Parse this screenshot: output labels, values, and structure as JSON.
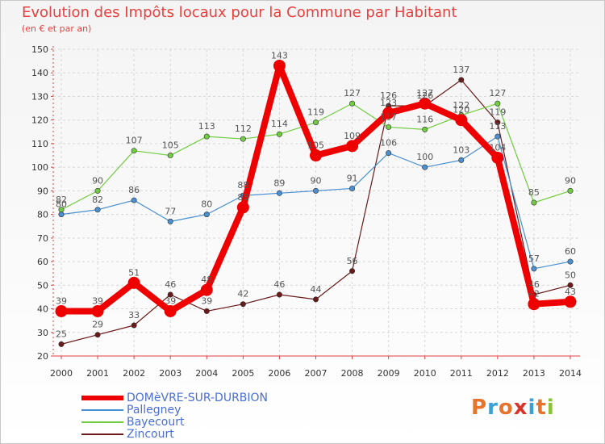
{
  "title": "Evolution des Impôts locaux pour la Commune par Habitant",
  "subtitle": "(en € et par an)",
  "logo_text": "Proxiti",
  "logo_colors": [
    "#e8742c",
    "#3aa0d8",
    "#e8742c",
    "#d8342c",
    "#3aa0d8",
    "#e8742c",
    "#8ac23c"
  ],
  "chart_data": {
    "type": "line",
    "categories": [
      "2000",
      "2001",
      "2002",
      "2003",
      "2004",
      "2005",
      "2006",
      "2007",
      "2008",
      "2009",
      "2010",
      "2011",
      "2012",
      "2013",
      "2014"
    ],
    "ylim": [
      20,
      150
    ],
    "yticks": [
      20,
      30,
      40,
      50,
      60,
      70,
      80,
      90,
      100,
      110,
      120,
      130,
      140,
      150
    ],
    "grid": true,
    "legend_position": "bottom-left",
    "series": [
      {
        "name": "DOMèVRE-SUR-DURBION",
        "color": "#ee0000",
        "values": [
          39,
          39,
          51,
          39,
          48,
          83,
          143,
          105,
          109,
          123,
          127,
          120,
          104,
          42,
          43
        ]
      },
      {
        "name": "Pallegney",
        "color": "#4a90d0",
        "values": [
          80,
          82,
          86,
          77,
          80,
          88,
          89,
          90,
          91,
          106,
          100,
          103,
          113,
          57,
          60
        ]
      },
      {
        "name": "Bayecourt",
        "color": "#70cc40",
        "values": [
          82,
          90,
          107,
          105,
          113,
          112,
          114,
          119,
          127,
          117,
          116,
          122,
          127,
          85,
          90
        ]
      },
      {
        "name": "Zincourt",
        "color": "#6a1a1a",
        "values": [
          25,
          29,
          33,
          46,
          39,
          42,
          46,
          44,
          56,
          126,
          126,
          137,
          119,
          46,
          50
        ]
      }
    ]
  }
}
